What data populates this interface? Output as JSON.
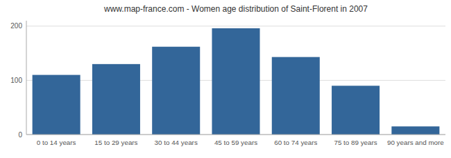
{
  "chart_data": {
    "type": "bar",
    "title": "www.map-france.com - Women age distribution of Saint-Florent in 2007",
    "categories": [
      "0 to 14 years",
      "15 to 29 years",
      "30 to 44 years",
      "45 to 59 years",
      "60 to 74 years",
      "75 to 89 years",
      "90 years and more"
    ],
    "values": [
      110,
      130,
      162,
      196,
      143,
      90,
      15
    ],
    "color": "#336699",
    "ylim": [
      0,
      210
    ],
    "yticks": [
      0,
      100,
      200
    ],
    "grid": true
  }
}
